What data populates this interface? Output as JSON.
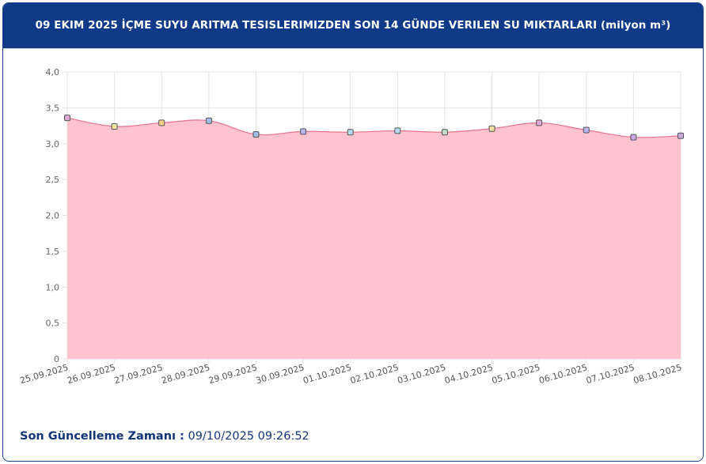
{
  "header": {
    "title": "09 EKIM 2025 İÇME SUYU ARITMA TESISLERIMIZDEN SON 14 GÜNDE VERILEN SU MIKTARLARI (milyon m³)"
  },
  "footer": {
    "label": "Son Güncelleme Zamanı :",
    "value": "09/10/2025 09:26:52"
  },
  "chart_data": {
    "type": "area",
    "categories": [
      "25.09.2025",
      "26.09.2025",
      "27.09.2025",
      "28.09.2025",
      "29.09.2025",
      "30.09.2025",
      "01.10.2025",
      "02.10.2025",
      "03.10.2025",
      "04.10.2025",
      "05.10.2025",
      "06.10.2025",
      "07.10.2025",
      "08.10.2025"
    ],
    "values": [
      3.36,
      3.24,
      3.29,
      3.32,
      3.13,
      3.17,
      3.16,
      3.18,
      3.16,
      3.21,
      3.29,
      3.19,
      3.09,
      3.11
    ],
    "y_ticks": [
      "0",
      "0,5",
      "1,0",
      "1,5",
      "2,0",
      "2,5",
      "3,0",
      "3,5",
      "4,0"
    ],
    "ylim": [
      0,
      4
    ],
    "grid": true,
    "colors": {
      "fill": "#ffc2cf",
      "line": "#e8728c",
      "grid": "#e3e3e3"
    },
    "marker_colors": [
      "#e0a8d4",
      "#f2e6a3",
      "#f5d08a",
      "#9fc0ea",
      "#9fc0ea",
      "#b7b6ee",
      "#b7d8ee",
      "#b7d8ee",
      "#bfdcc9",
      "#f2e0a3",
      "#e0a8d4",
      "#b7b6ee",
      "#c8a8e0",
      "#c8a8e0"
    ]
  }
}
